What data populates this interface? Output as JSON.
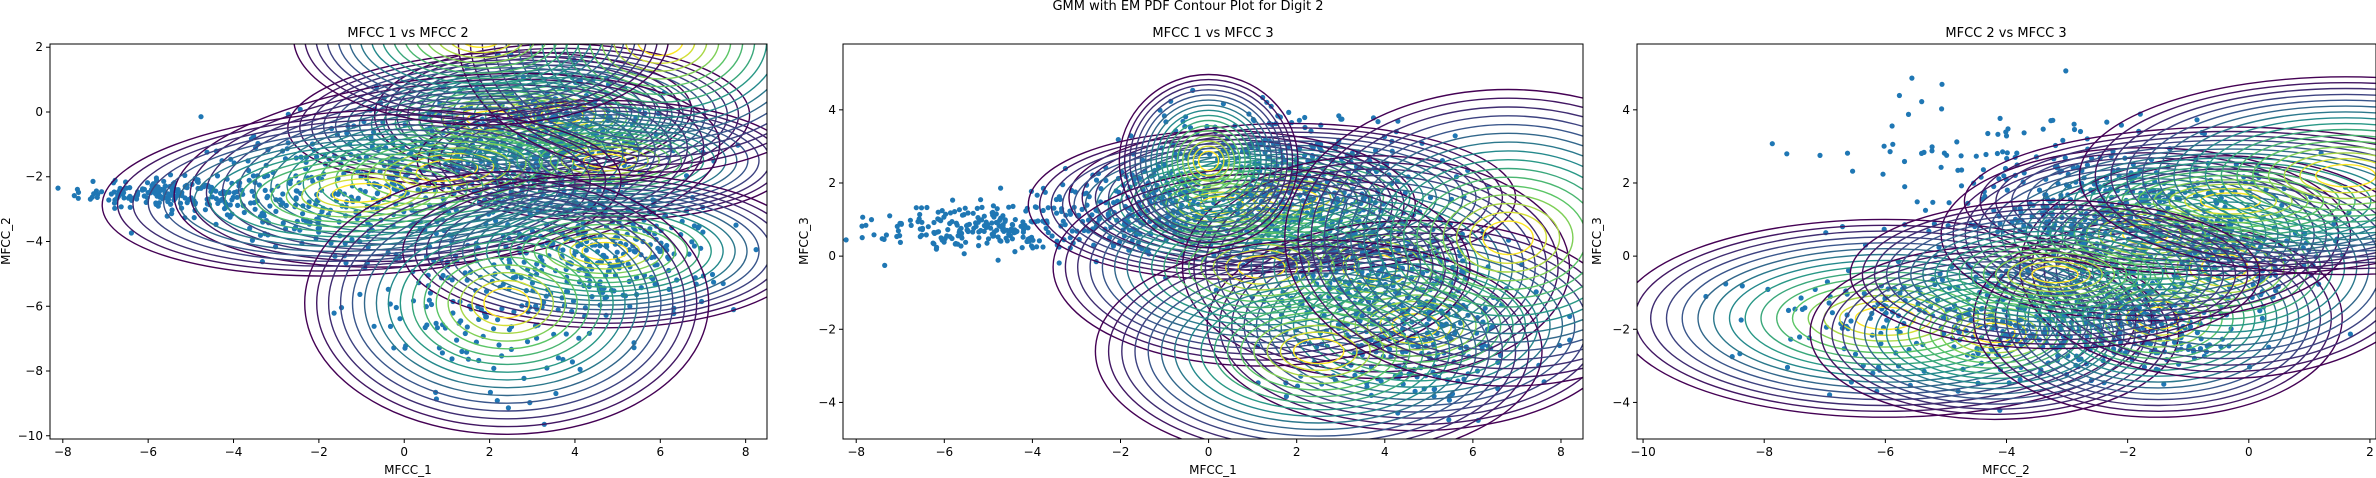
{
  "figure": {
    "suptitle": "GMM with EM PDF Contour Plot for Digit 2"
  },
  "colors": {
    "scatter": "#1f77b4",
    "contour_low": "#440154",
    "contour_high": "#fde725"
  },
  "chart_data": [
    {
      "type": "scatter",
      "title": "MFCC 1 vs MFCC 2",
      "xlabel": "MFCC_1",
      "ylabel": "MFCC_2",
      "xlim": [
        -8.3,
        8.5
      ],
      "ylim": [
        -10.1,
        2.1
      ],
      "xticks": [
        -8,
        -6,
        -4,
        -2,
        0,
        2,
        4,
        6,
        8
      ],
      "yticks": [
        -10,
        -8,
        -6,
        -4,
        -2,
        0,
        2
      ],
      "scatter_clusters": [
        {
          "cx": -5.6,
          "cy": -2.5,
          "sx": 1.0,
          "sy": 0.25,
          "n": 180
        },
        {
          "cx": -1.5,
          "cy": -2.6,
          "sx": 1.7,
          "sy": 0.9,
          "n": 280
        },
        {
          "cx": 2.5,
          "cy": -1.4,
          "sx": 1.8,
          "sy": 1.0,
          "n": 350
        },
        {
          "cx": 4.8,
          "cy": -4.3,
          "sx": 1.3,
          "sy": 0.9,
          "n": 250
        },
        {
          "cx": 2.0,
          "cy": -5.8,
          "sx": 1.6,
          "sy": 1.4,
          "n": 160
        },
        {
          "cx": 3.5,
          "cy": -0.2,
          "sx": 1.2,
          "sy": 0.6,
          "n": 150
        }
      ],
      "gaussians": [
        {
          "mx": 3.7,
          "my": -0.1,
          "sx": 1.3,
          "sy": 0.65,
          "rho": 0.0
        },
        {
          "mx": 2.0,
          "my": -0.2,
          "sx": 1.4,
          "sy": 0.6,
          "rho": 0.1
        },
        {
          "mx": 4.7,
          "my": -1.5,
          "sx": 1.3,
          "sy": 0.55,
          "rho": 0.0
        },
        {
          "mx": 1.0,
          "my": -1.8,
          "sx": 1.9,
          "sy": 0.85,
          "rho": 0.2
        },
        {
          "mx": -1.0,
          "my": -2.5,
          "sx": 1.8,
          "sy": 0.75,
          "rho": 0.1
        },
        {
          "mx": 4.7,
          "my": -4.3,
          "sx": 1.4,
          "sy": 0.7,
          "rho": 0.0
        },
        {
          "mx": 2.4,
          "my": -5.9,
          "sx": 1.4,
          "sy": 1.2,
          "rho": 0.0
        },
        {
          "mx": 6.0,
          "my": 2.2,
          "sx": 1.4,
          "sy": 1.2,
          "rho": 0.0
        },
        {
          "mx": 1.8,
          "my": 2.3,
          "sx": 1.3,
          "sy": 0.8,
          "rho": 0.0
        }
      ]
    },
    {
      "type": "scatter",
      "title": "MFCC 1 vs MFCC 3",
      "xlabel": "MFCC_1",
      "ylabel": "MFCC_3",
      "xlim": [
        -8.3,
        8.5
      ],
      "ylim": [
        -5.0,
        5.8
      ],
      "xticks": [
        -8,
        -6,
        -4,
        -2,
        0,
        2,
        4,
        6,
        8
      ],
      "yticks": [
        -4,
        -2,
        0,
        2,
        4
      ],
      "scatter_clusters": [
        {
          "cx": -5.2,
          "cy": 0.8,
          "sx": 1.2,
          "sy": 0.35,
          "n": 220
        },
        {
          "cx": -1.5,
          "cy": 1.3,
          "sx": 1.2,
          "sy": 0.6,
          "n": 250
        },
        {
          "cx": 1.8,
          "cy": 1.6,
          "sx": 1.4,
          "sy": 0.8,
          "n": 300
        },
        {
          "cx": 3.8,
          "cy": -0.4,
          "sx": 1.3,
          "sy": 0.9,
          "n": 280
        },
        {
          "cx": 4.6,
          "cy": -2.3,
          "sx": 1.3,
          "sy": 0.9,
          "n": 220
        },
        {
          "cx": 1.0,
          "cy": 3.0,
          "sx": 1.5,
          "sy": 0.7,
          "n": 120
        }
      ],
      "gaussians": [
        {
          "mx": 1.9,
          "my": 1.6,
          "sx": 1.5,
          "sy": 0.6,
          "rho": 0.0
        },
        {
          "mx": 0.3,
          "my": 1.4,
          "sx": 1.3,
          "sy": 0.6,
          "rho": 0.0
        },
        {
          "mx": 3.8,
          "my": -0.3,
          "sx": 1.3,
          "sy": 0.9,
          "rho": 0.0
        },
        {
          "mx": 4.7,
          "my": -1.9,
          "sx": 1.4,
          "sy": 0.85,
          "rho": 0.0
        },
        {
          "mx": 1.2,
          "my": -0.3,
          "sx": 1.4,
          "sy": 0.8,
          "rho": 0.0
        },
        {
          "mx": 2.5,
          "my": -2.6,
          "sx": 1.5,
          "sy": 0.9,
          "rho": 0.0
        },
        {
          "mx": 6.8,
          "my": 0.5,
          "sx": 1.5,
          "sy": 1.2,
          "rho": 0.0
        },
        {
          "mx": 0.0,
          "my": 2.6,
          "sx": 0.6,
          "sy": 0.7,
          "rho": 0.0
        }
      ]
    },
    {
      "type": "scatter",
      "title": "MFCC 2 vs MFCC 3",
      "xlabel": "MFCC_2",
      "ylabel": "MFCC_3",
      "xlim": [
        -10.1,
        2.1
      ],
      "ylim": [
        -5.0,
        5.8
      ],
      "xticks": [
        -10,
        -8,
        -6,
        -4,
        -2,
        0,
        2
      ],
      "yticks": [
        -4,
        -2,
        0,
        2,
        4
      ],
      "scatter_clusters": [
        {
          "cx": -2.6,
          "cy": 1.3,
          "sx": 1.0,
          "sy": 0.8,
          "n": 220
        },
        {
          "cx": -0.8,
          "cy": 0.5,
          "sx": 1.1,
          "sy": 1.0,
          "n": 260
        },
        {
          "cx": -4.0,
          "cy": -1.8,
          "sx": 0.9,
          "sy": 0.7,
          "n": 220
        },
        {
          "cx": -1.6,
          "cy": -1.8,
          "sx": 0.8,
          "sy": 0.8,
          "n": 200
        },
        {
          "cx": -6.3,
          "cy": -1.5,
          "sx": 1.2,
          "sy": 0.9,
          "n": 90
        },
        {
          "cx": -4.2,
          "cy": 2.5,
          "sx": 1.6,
          "sy": 1.0,
          "n": 100
        }
      ],
      "gaussians": [
        {
          "mx": -6.0,
          "my": -1.7,
          "sx": 1.3,
          "sy": 0.8,
          "rho": 0.0
        },
        {
          "mx": -4.2,
          "my": -2.1,
          "sx": 0.9,
          "sy": 0.7,
          "rho": 0.0
        },
        {
          "mx": -1.5,
          "my": -1.7,
          "sx": 0.9,
          "sy": 0.8,
          "rho": 0.0
        },
        {
          "mx": -0.4,
          "my": -0.3,
          "sx": 1.0,
          "sy": 0.9,
          "rho": 0.0
        },
        {
          "mx": -1.7,
          "my": 0.6,
          "sx": 1.0,
          "sy": 0.7,
          "rho": 0.0
        },
        {
          "mx": -0.3,
          "my": 1.5,
          "sx": 1.3,
          "sy": 0.6,
          "rho": 0.0
        },
        {
          "mx": -3.2,
          "my": -0.5,
          "sx": 1.0,
          "sy": 0.6,
          "rho": 0.0
        },
        {
          "mx": 1.6,
          "my": 2.2,
          "sx": 1.3,
          "sy": 0.8,
          "rho": 0.0
        }
      ]
    }
  ]
}
